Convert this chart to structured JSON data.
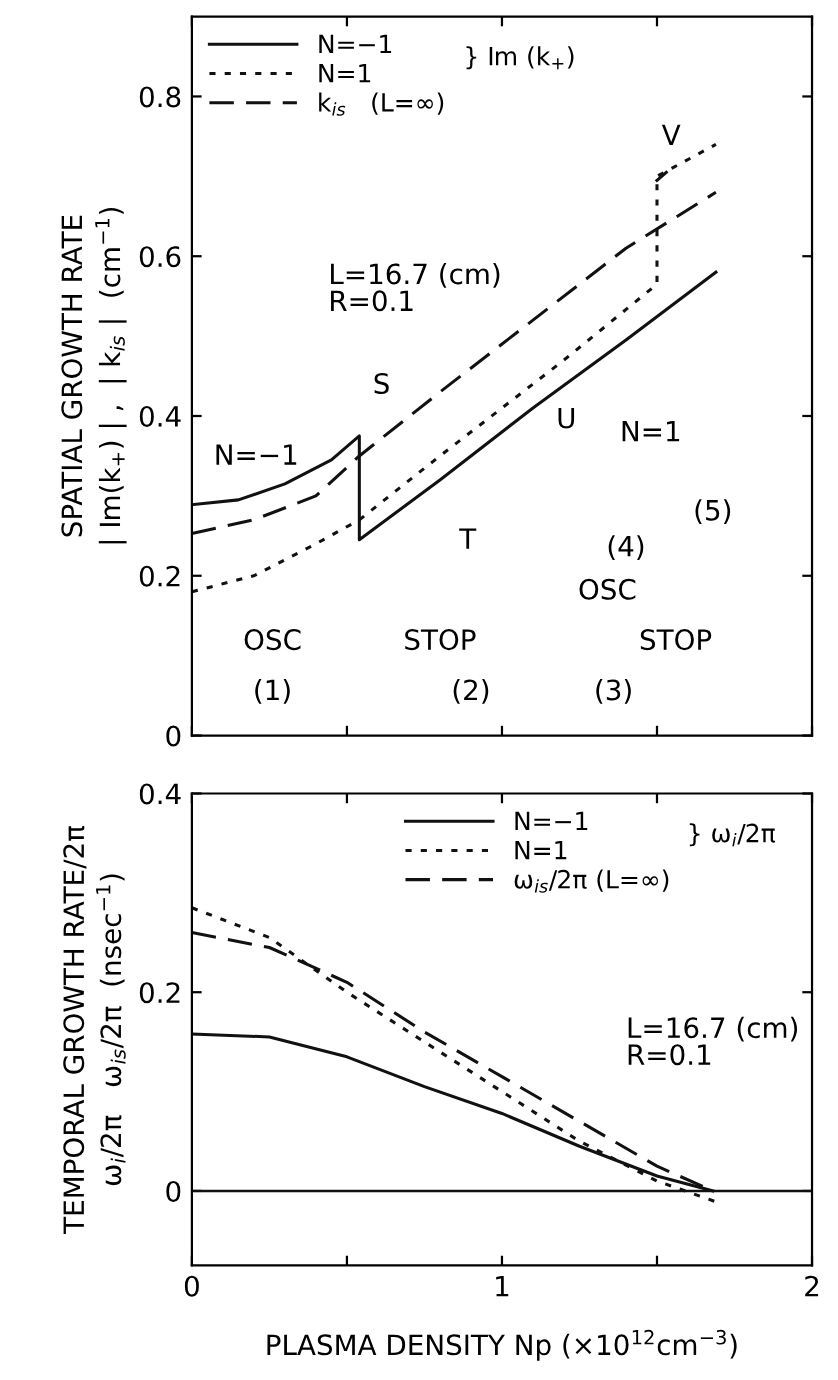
{
  "chart_data": [
    {
      "type": "line",
      "ylabel": "SPATIAL GROWTH RATE\n| Im(k$_{+}$) | ,  | k$_{is}$ |  (cm$^{−1}$)",
      "xlim": [
        0,
        2
      ],
      "xticks": [
        0,
        0.5,
        1,
        1.5,
        2
      ],
      "ylim": [
        0,
        0.9
      ],
      "yticks": [
        0,
        0.2,
        0.4,
        0.6,
        0.8
      ],
      "tick_labels": "y",
      "grid": false,
      "legend": "top left",
      "legend_title": "} Im (k$_{+}$)",
      "series": [
        {
          "name": "N=−1",
          "color": "#111111",
          "line_style": "solid",
          "x": [
            0,
            0.15,
            0.3,
            0.45,
            0.54,
            0.54,
            0.8,
            1.1,
            1.4,
            1.69
          ],
          "values": [
            0.289,
            0.295,
            0.315,
            0.345,
            0.375,
            0.245,
            0.32,
            0.41,
            0.495,
            0.58
          ]
        },
        {
          "name": "N=1",
          "color": "#111111",
          "line_style": "dotted",
          "x": [
            0,
            0.2,
            0.4,
            0.54,
            0.8,
            1.0,
            1.2,
            1.5,
            1.5,
            1.69
          ],
          "values": [
            0.18,
            0.2,
            0.24,
            0.27,
            0.35,
            0.41,
            0.47,
            0.565,
            0.7,
            0.74
          ]
        },
        {
          "name": "k$_{is}$   (L=∞)",
          "color": "#111111",
          "line_style": "dashed",
          "x": [
            0,
            0.2,
            0.4,
            0.54,
            0.8,
            1.1,
            1.4,
            1.69
          ],
          "values": [
            0.253,
            0.27,
            0.3,
            0.35,
            0.43,
            0.52,
            0.61,
            0.68
          ]
        },
        {
          "color": "#111111",
          "line_style": "solid",
          "x": [
            1.5,
            1.53
          ],
          "values": [
            0.695,
            0.705
          ]
        }
      ],
      "annotations": [
        "L=16.7 (cm)\nR=0.1",
        "N=1",
        "OSC",
        "STOP",
        "OSC",
        "STOP",
        "(1)",
        "(2)",
        "(3)",
        "(4)",
        "(5)",
        {
          "text": "N=−1",
          "x": 0.1,
          "y": 0.3
        },
        {
          "text": "S",
          "x": 0.54,
          "y": 0.375
        },
        {
          "text": "T",
          "x": 0.8,
          "y": 0.32
        },
        {
          "text": "U",
          "x": 1.1,
          "y": 0.45
        },
        {
          "text": "V",
          "x": 1.51,
          "y": 0.7
        }
      ]
    },
    {
      "type": "line",
      "ylabel": "TEMPORAL GROWTH RATE/2π\nω$_{i}$/2π   ω$_{is}$/2π  (nsec$^{−1}$)",
      "xlabel": "PLASMA DENSITY Np (×10$^{12}$cm$^{−3}$)",
      "xlim": [
        0,
        2
      ],
      "xticks": [
        0,
        {
          "value": 0.5,
          "label": null
        },
        1,
        {
          "value": 1.5,
          "label": null
        },
        2
      ],
      "ylim": [
        -0.075,
        0.4
      ],
      "yticks": [
        0,
        0.2,
        0.4
      ],
      "grid": false,
      "legend": "top right",
      "legend_title": "} ω$_{i}$/2π",
      "ref_lines": [
        {
          "axis": "y",
          "value": 0,
          "color": "#111111",
          "line_style": "solid"
        }
      ],
      "series": [
        {
          "name": "N=−1",
          "color": "#111111",
          "line_style": "solid",
          "x": [
            0,
            0.25,
            0.5,
            0.75,
            1.0,
            1.25,
            1.5,
            1.68
          ],
          "values": [
            0.158,
            0.155,
            0.135,
            0.105,
            0.078,
            0.045,
            0.015,
            0
          ]
        },
        {
          "name": "N=1",
          "color": "#111111",
          "line_style": "dotted",
          "x": [
            0,
            0.25,
            0.5,
            0.75,
            1.0,
            1.25,
            1.5,
            1.7
          ],
          "values": [
            0.285,
            0.255,
            0.2,
            0.15,
            0.1,
            0.05,
            0.01,
            -0.012
          ]
        },
        {
          "name": "ω$_{is}$/2π (L=∞)",
          "color": "#111111",
          "line_style": "dashed",
          "x": [
            0,
            0.25,
            0.5,
            0.75,
            1.0,
            1.25,
            1.5,
            1.68
          ],
          "values": [
            0.26,
            0.245,
            0.21,
            0.16,
            0.115,
            0.07,
            0.025,
            0
          ]
        }
      ],
      "annotations": [
        "L=16.7 (cm)\nR=0.1"
      ]
    }
  ]
}
